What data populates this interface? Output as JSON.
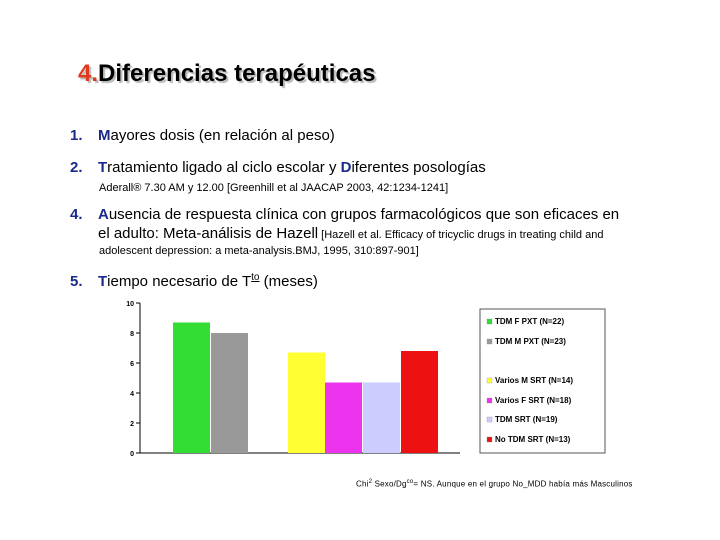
{
  "slide": {
    "title_number": "4.",
    "title_text": "Diferencias terapéuticas",
    "items": [
      {
        "num": "1.",
        "first": "M",
        "rest": "ayores dosis (en relación al peso)"
      },
      {
        "num": "2.",
        "first": "T",
        "middle": "ratamiento ligado al ciclo escolar y ",
        "second": "D",
        "rest": "iferentes posologías"
      },
      {
        "num": "4.",
        "first": "A",
        "rest": "usencia de respuesta clínica con grupos farmacológicos que son eficaces en",
        "line2": "el adulto: Meta-análisis de Hazell",
        "line2_ref": " [Hazell et al. Efficacy of tricyclic drugs in treating child and"
      },
      {
        "num": "5.",
        "first": "T",
        "middle": "iempo necesario de T",
        "sup": "to",
        "rest": " (meses)"
      }
    ],
    "sub2": "Aderall® 7.30 AM y 12.00 [Greenhill et al JAACAP 2003, 42:1234-1241]",
    "sub4": "adolescent depression: a meta-analysis.BMJ, 1995, 310:897-901]",
    "note_prefix": "Chi",
    "note_sup": "2",
    "note_mid": " Sexo/Dg",
    "note_sup2": "co",
    "note_rest": "= NS. Aunque en el grupo No_MDD había más Masculinos"
  },
  "chart_data": {
    "type": "bar",
    "ylim": [
      0,
      10
    ],
    "yticks": [
      "0",
      "2",
      "4",
      "6",
      "8",
      "10"
    ],
    "series": [
      {
        "name": "TDM F PXT (N=22)",
        "value": 8.7,
        "color": "#33dd33"
      },
      {
        "name": "TDM M PXT (N=23)",
        "value": 8.0,
        "color": "#999999"
      },
      {
        "name": "Varios M SRT (N=14)",
        "value": 6.7,
        "color": "#ffff33"
      },
      {
        "name": "Varios F SRT (N=18)",
        "value": 4.7,
        "color": "#ee33ee"
      },
      {
        "name": "TDM   SRT (N=19)",
        "value": 4.7,
        "color": "#ccccff"
      },
      {
        "name": "No TDM SRT (N=13)",
        "value": 6.8,
        "color": "#ee1111"
      }
    ]
  }
}
